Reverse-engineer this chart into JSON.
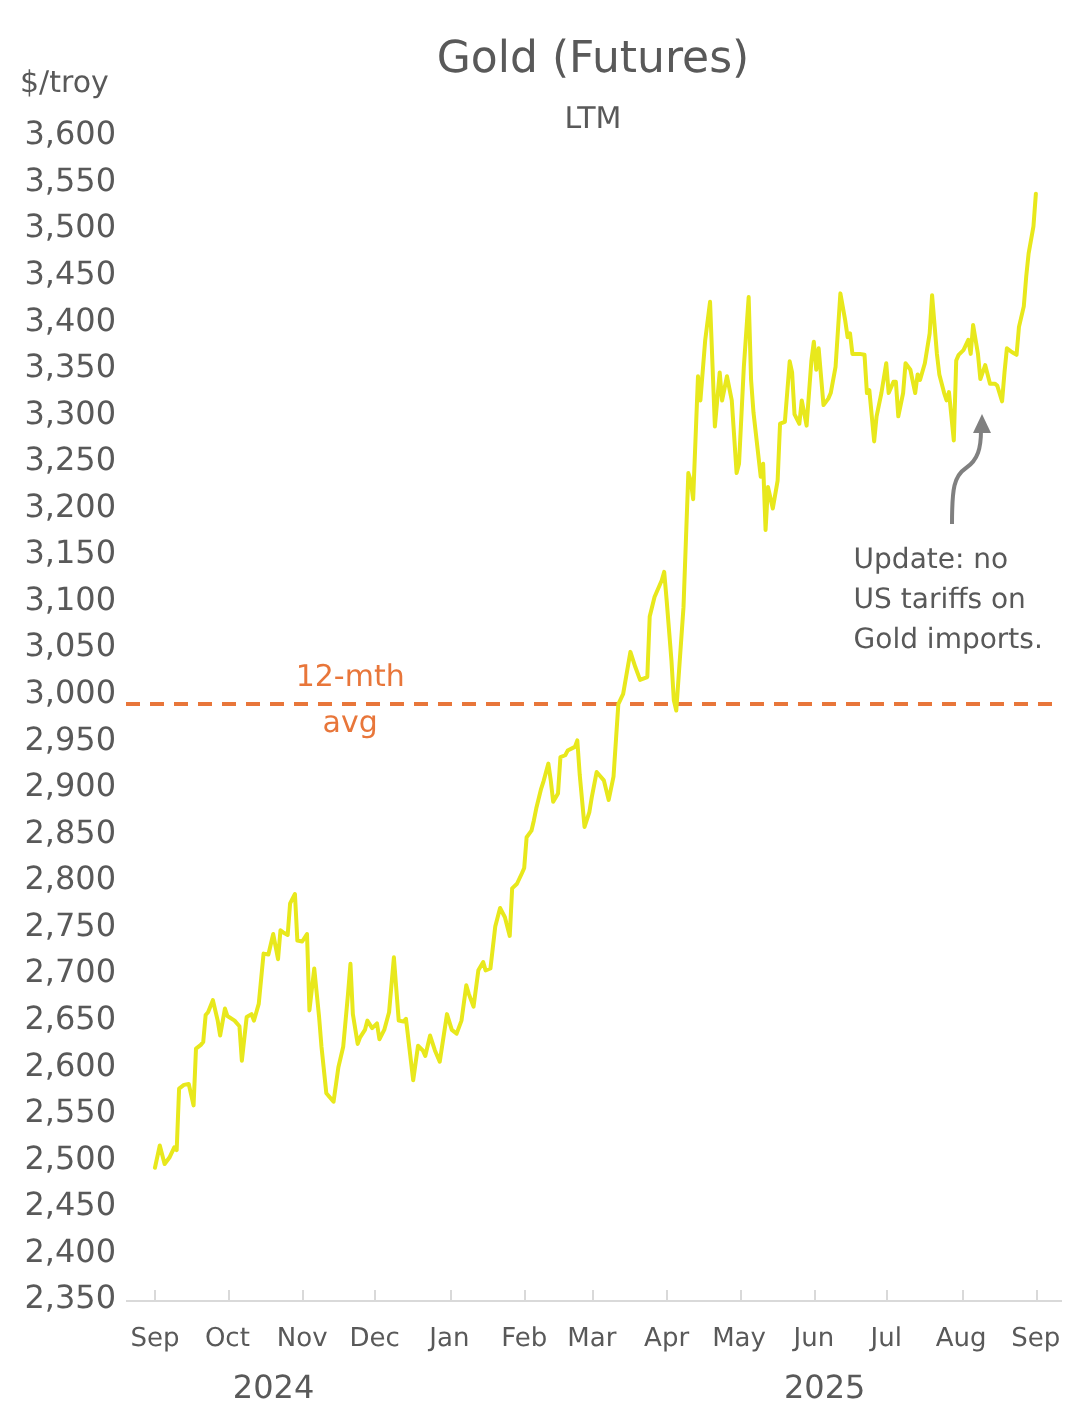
{
  "chart_data": {
    "type": "line",
    "title": "Gold (Futures)",
    "subtitle": "LTM",
    "ylabel": "$/troy",
    "x": [
      "2024-09-01",
      "2024-09-03",
      "2024-09-05",
      "2024-09-07",
      "2024-09-09",
      "2024-09-10",
      "2024-09-11",
      "2024-09-13",
      "2024-09-15",
      "2024-09-17",
      "2024-09-18",
      "2024-09-20",
      "2024-09-21",
      "2024-09-22",
      "2024-09-23",
      "2024-09-25",
      "2024-09-27",
      "2024-09-28",
      "2024-09-30",
      "2024-10-01",
      "2024-10-04",
      "2024-10-06",
      "2024-10-07",
      "2024-10-09",
      "2024-10-11",
      "2024-10-12",
      "2024-10-14",
      "2024-10-16",
      "2024-10-18",
      "2024-10-20",
      "2024-10-22",
      "2024-10-23",
      "2024-10-24",
      "2024-10-26",
      "2024-10-27",
      "2024-10-29",
      "2024-10-30",
      "2024-11-01",
      "2024-11-03",
      "2024-11-04",
      "2024-11-06",
      "2024-11-08",
      "2024-11-09",
      "2024-11-11",
      "2024-11-14",
      "2024-11-16",
      "2024-11-18",
      "2024-11-20",
      "2024-11-21",
      "2024-11-22",
      "2024-11-24",
      "2024-11-25",
      "2024-11-27",
      "2024-11-28",
      "2024-11-30",
      "2024-12-02",
      "2024-12-03",
      "2024-12-05",
      "2024-12-07",
      "2024-12-09",
      "2024-12-11",
      "2024-12-13",
      "2024-12-14",
      "2024-12-17",
      "2024-12-19",
      "2024-12-21",
      "2024-12-22",
      "2024-12-24",
      "2024-12-26",
      "2024-12-28",
      "2024-12-31",
      "2025-01-02",
      "2025-01-04",
      "2025-01-06",
      "2025-01-08",
      "2025-01-09",
      "2025-01-11",
      "2025-01-13",
      "2025-01-15",
      "2025-01-16",
      "2025-01-18",
      "2025-01-20",
      "2025-01-21",
      "2025-01-22",
      "2025-01-24",
      "2025-01-26",
      "2025-01-27",
      "2025-01-29",
      "2025-01-31",
      "2025-02-01",
      "2025-02-02",
      "2025-02-04",
      "2025-02-05",
      "2025-02-06",
      "2025-02-08",
      "2025-02-09",
      "2025-02-11",
      "2025-02-12",
      "2025-02-13",
      "2025-02-15",
      "2025-02-16",
      "2025-02-18",
      "2025-02-19",
      "2025-02-22",
      "2025-02-23",
      "2025-02-24",
      "2025-02-26",
      "2025-02-28",
      "2025-03-01",
      "2025-03-03",
      "2025-03-04",
      "2025-03-06",
      "2025-03-08",
      "2025-03-10",
      "2025-03-11",
      "2025-03-12",
      "2025-03-14",
      "2025-03-17",
      "2025-03-19",
      "2025-03-21",
      "2025-03-24",
      "2025-03-25",
      "2025-03-27",
      "2025-03-30",
      "2025-03-31",
      "2025-04-01",
      "2025-04-03",
      "2025-04-04",
      "2025-04-05",
      "2025-04-08",
      "2025-04-10",
      "2025-04-11",
      "2025-04-12",
      "2025-04-14",
      "2025-04-15",
      "2025-04-17",
      "2025-04-19",
      "2025-04-21",
      "2025-04-23",
      "2025-04-24",
      "2025-04-26",
      "2025-04-28",
      "2025-04-30",
      "2025-05-01",
      "2025-05-03",
      "2025-05-05",
      "2025-05-06",
      "2025-05-07",
      "2025-05-10",
      "2025-05-11",
      "2025-05-12",
      "2025-05-13",
      "2025-05-15",
      "2025-05-17",
      "2025-05-18",
      "2025-05-20",
      "2025-05-22",
      "2025-05-23",
      "2025-05-24",
      "2025-05-26",
      "2025-05-27",
      "2025-05-29",
      "2025-05-31",
      "2025-06-01",
      "2025-06-02",
      "2025-06-03",
      "2025-06-05",
      "2025-06-07",
      "2025-06-08",
      "2025-06-10",
      "2025-06-12",
      "2025-06-14",
      "2025-06-15",
      "2025-06-16",
      "2025-06-17",
      "2025-06-20",
      "2025-06-22",
      "2025-06-23",
      "2025-06-24",
      "2025-06-26",
      "2025-06-27",
      "2025-06-29",
      "2025-07-01",
      "2025-07-02",
      "2025-07-04",
      "2025-07-05",
      "2025-07-06",
      "2025-07-08",
      "2025-07-09",
      "2025-07-11",
      "2025-07-13",
      "2025-07-14",
      "2025-07-15",
      "2025-07-17",
      "2025-07-19",
      "2025-07-20",
      "2025-07-22",
      "2025-07-23",
      "2025-07-25",
      "2025-07-26",
      "2025-07-27",
      "2025-07-29",
      "2025-07-30",
      "2025-07-31",
      "2025-08-02",
      "2025-08-04",
      "2025-08-05",
      "2025-08-06",
      "2025-08-08",
      "2025-08-09",
      "2025-08-11",
      "2025-08-13",
      "2025-08-15",
      "2025-08-16",
      "2025-08-18",
      "2025-08-19",
      "2025-08-20",
      "2025-08-22",
      "2025-08-24",
      "2025-08-25",
      "2025-08-27",
      "2025-08-28",
      "2025-08-29",
      "2025-08-31",
      "2025-09-01"
    ],
    "values": [
      2492,
      2516,
      2496,
      2503,
      2514,
      2511,
      2577,
      2581,
      2582,
      2559,
      2620,
      2624,
      2627,
      2656,
      2659,
      2672,
      2650,
      2634,
      2663,
      2655,
      2650,
      2644,
      2607,
      2654,
      2657,
      2650,
      2668,
      2722,
      2721,
      2743,
      2716,
      2747,
      2745,
      2742,
      2776,
      2786,
      2736,
      2735,
      2743,
      2661,
      2706,
      2654,
      2622,
      2572,
      2563,
      2600,
      2622,
      2679,
      2711,
      2657,
      2625,
      2632,
      2640,
      2650,
      2642,
      2647,
      2630,
      2640,
      2659,
      2718,
      2650,
      2649,
      2652,
      2586,
      2623,
      2618,
      2612,
      2634,
      2618,
      2606,
      2657,
      2640,
      2636,
      2650,
      2688,
      2679,
      2665,
      2704,
      2713,
      2704,
      2706,
      2751,
      2761,
      2771,
      2761,
      2741,
      2792,
      2797,
      2808,
      2814,
      2847,
      2854,
      2865,
      2878,
      2899,
      2907,
      2926,
      2908,
      2885,
      2894,
      2933,
      2935,
      2940,
      2944,
      2951,
      2914,
      2858,
      2874,
      2890,
      2917,
      2914,
      2908,
      2887,
      2912,
      2951,
      2990,
      3001,
      3046,
      3030,
      3016,
      3019,
      3084,
      3105,
      3123,
      3132,
      3102,
      3037,
      2994,
      2983,
      3094,
      3238,
      3230,
      3210,
      3342,
      3316,
      3381,
      3422,
      3288,
      3346,
      3316,
      3342,
      3316,
      3238,
      3248,
      3352,
      3427,
      3338,
      3303,
      3234,
      3248,
      3177,
      3223,
      3200,
      3230,
      3291,
      3293,
      3358,
      3346,
      3301,
      3291,
      3316,
      3289,
      3359,
      3379,
      3349,
      3372,
      3311,
      3318,
      3324,
      3352,
      3431,
      3402,
      3384,
      3388,
      3366,
      3366,
      3365,
      3324,
      3327,
      3272,
      3299,
      3324,
      3356,
      3324,
      3336,
      3336,
      3299,
      3324,
      3356,
      3349,
      3324,
      3344,
      3338,
      3356,
      3388,
      3429,
      3366,
      3344,
      3324,
      3316,
      3325,
      3273,
      3359,
      3365,
      3370,
      3381,
      3366,
      3397,
      3366,
      3339,
      3354,
      3334,
      3334,
      3332,
      3315,
      3346,
      3372,
      3368,
      3365,
      3395,
      3417,
      3449,
      3474,
      3503,
      3538
    ],
    "color": "#e8e81c",
    "marker": "none",
    "xlim": [
      "2024-08-20",
      "2025-09-11"
    ],
    "xticks": [
      {
        "value": "2024-09-01",
        "label": "Sep"
      },
      {
        "value": "2024-10-01",
        "label": "Oct"
      },
      {
        "value": "2024-11-01",
        "label": "Nov"
      },
      {
        "value": "2024-12-01",
        "label": "Dec"
      },
      {
        "value": "2025-01-01",
        "label": "Jan"
      },
      {
        "value": "2025-02-01",
        "label": "Feb"
      },
      {
        "value": "2025-03-01",
        "label": "Mar"
      },
      {
        "value": "2025-04-01",
        "label": "Apr"
      },
      {
        "value": "2025-05-01",
        "label": "May"
      },
      {
        "value": "2025-06-01",
        "label": "Jun"
      },
      {
        "value": "2025-07-01",
        "label": "Jul"
      },
      {
        "value": "2025-08-01",
        "label": "Aug"
      },
      {
        "value": "2025-09-01",
        "label": "Sep"
      }
    ],
    "ylim": [
      2350,
      3600
    ],
    "yticks": [
      {
        "value": 2350,
        "label": "2,350"
      },
      {
        "value": 2400,
        "label": "2,400"
      },
      {
        "value": 2450,
        "label": "2,450"
      },
      {
        "value": 2500,
        "label": "2,500"
      },
      {
        "value": 2550,
        "label": "2,550"
      },
      {
        "value": 2600,
        "label": "2,600"
      },
      {
        "value": 2650,
        "label": "2,650"
      },
      {
        "value": 2700,
        "label": "2,700"
      },
      {
        "value": 2750,
        "label": "2,750"
      },
      {
        "value": 2800,
        "label": "2,800"
      },
      {
        "value": 2850,
        "label": "2,850"
      },
      {
        "value": 2900,
        "label": "2,900"
      },
      {
        "value": 2950,
        "label": "2,950"
      },
      {
        "value": 3000,
        "label": "3,000"
      },
      {
        "value": 3050,
        "label": "3,050"
      },
      {
        "value": 3100,
        "label": "3,100"
      },
      {
        "value": 3150,
        "label": "3,150"
      },
      {
        "value": 3200,
        "label": "3,200"
      },
      {
        "value": 3250,
        "label": "3,250"
      },
      {
        "value": 3300,
        "label": "3,300"
      },
      {
        "value": 3350,
        "label": "3,350"
      },
      {
        "value": 3400,
        "label": "3,400"
      },
      {
        "value": 3450,
        "label": "3,450"
      },
      {
        "value": 3500,
        "label": "3,500"
      },
      {
        "value": 3550,
        "label": "3,550"
      },
      {
        "value": 3600,
        "label": "3,600"
      }
    ],
    "ref_lines": [
      {
        "axis": "y",
        "value": 2990,
        "label": "12-mth avg",
        "color": "#e8763a",
        "line_style": "dashed"
      }
    ],
    "annotations": [
      "Update: no US tariffs on Gold imports.",
      "2024",
      "2025"
    ]
  }
}
